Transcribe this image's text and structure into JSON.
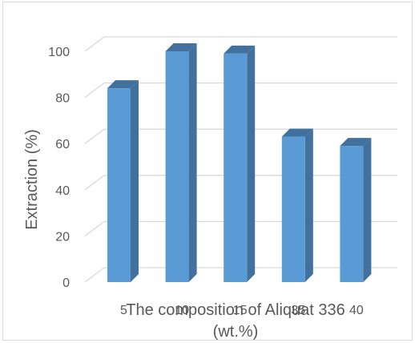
{
  "chart_data": {
    "type": "bar",
    "style": "3d-column",
    "categories": [
      "5",
      "10",
      "15",
      "35",
      "40"
    ],
    "values": [
      84,
      100,
      99,
      63,
      59
    ],
    "xlabel": "The composition of Aliquat 336 (wt.%)",
    "xlabel_lines": [
      "The composition of Aliquat 336",
      "(wt.%)"
    ],
    "ylabel": "Extraction (%)",
    "ylim": [
      0,
      100
    ],
    "yticks": [
      "0",
      "20",
      "40",
      "60",
      "80",
      "100"
    ],
    "grid": true,
    "legend": "none",
    "colors": {
      "bar_front": "#5b9bd5",
      "bar_side": "#41719c",
      "bar_top": "#41719c",
      "gridline": "#d9d9d9",
      "text": "#595959"
    }
  }
}
